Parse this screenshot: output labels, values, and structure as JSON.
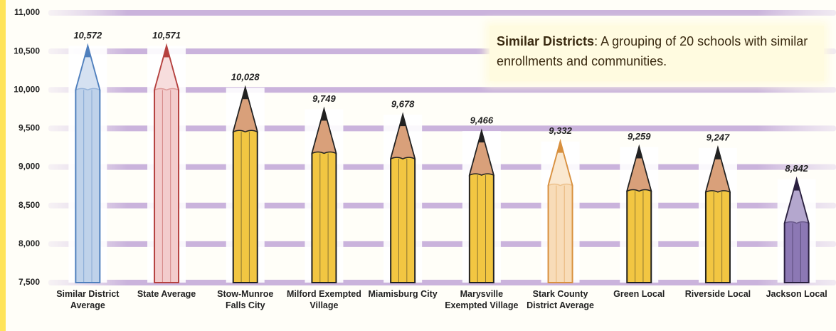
{
  "chart_data": {
    "type": "pencil-bar",
    "categories": [
      "Similar District Average",
      "State Average",
      "Stow-Munroe Falls City",
      "Milford Exempted Village",
      "Miamisburg City",
      "Marysville Exempted Village",
      "Stark County District Average",
      "Green Local",
      "Riverside Local",
      "Jackson Local"
    ],
    "values": [
      10572,
      10571,
      10028,
      9749,
      9678,
      9466,
      9332,
      9259,
      9247,
      8842
    ],
    "value_labels": [
      "10,572",
      "10,571",
      "10,028",
      "9,749",
      "9,678",
      "9,466",
      "9,332",
      "9,259",
      "9,247",
      "8,842"
    ],
    "colors": [
      "#bfd2ea",
      "#f3cccc",
      "#f2c642",
      "#f2c642",
      "#f2c642",
      "#f2c642",
      "#f8dcb8",
      "#f2c642",
      "#f2c642",
      "#8c78b4"
    ],
    "edge_colors": [
      "#4f7fbd",
      "#b5413f",
      "#222222",
      "#222222",
      "#222222",
      "#222222",
      "#d8903f",
      "#222222",
      "#222222",
      "#2a2040"
    ],
    "ylim": [
      7500,
      11000
    ],
    "yticks": [
      {
        "value": 7500,
        "label": "7,500"
      },
      {
        "value": 8000,
        "label": "8,000"
      },
      {
        "value": 8500,
        "label": "8,500"
      },
      {
        "value": 9000,
        "label": "9,000"
      },
      {
        "value": 9500,
        "label": "9,500"
      },
      {
        "value": 10000,
        "label": "10,000"
      },
      {
        "value": 10500,
        "label": "10,500"
      },
      {
        "value": 11000,
        "label": "11,000"
      }
    ],
    "grid": true,
    "annotation": {
      "title": "Similar Districts",
      "text": ":  A grouping of 20 schools with similar enrollments and communities."
    }
  }
}
